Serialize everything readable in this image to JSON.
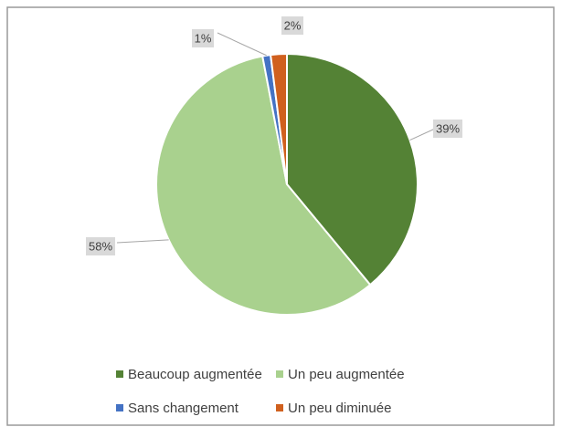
{
  "chart_data": {
    "type": "pie",
    "categories": [
      "Beaucoup augmentée",
      "Un peu augmentée",
      "Sans changement",
      "Un peu diminuée"
    ],
    "values": [
      39,
      58,
      1,
      2
    ],
    "value_labels": [
      "39%",
      "58%",
      "1%",
      "2%"
    ],
    "colors": [
      "#548235",
      "#a9d18e",
      "#4472c4",
      "#d0601e"
    ],
    "legend": "bottom"
  }
}
